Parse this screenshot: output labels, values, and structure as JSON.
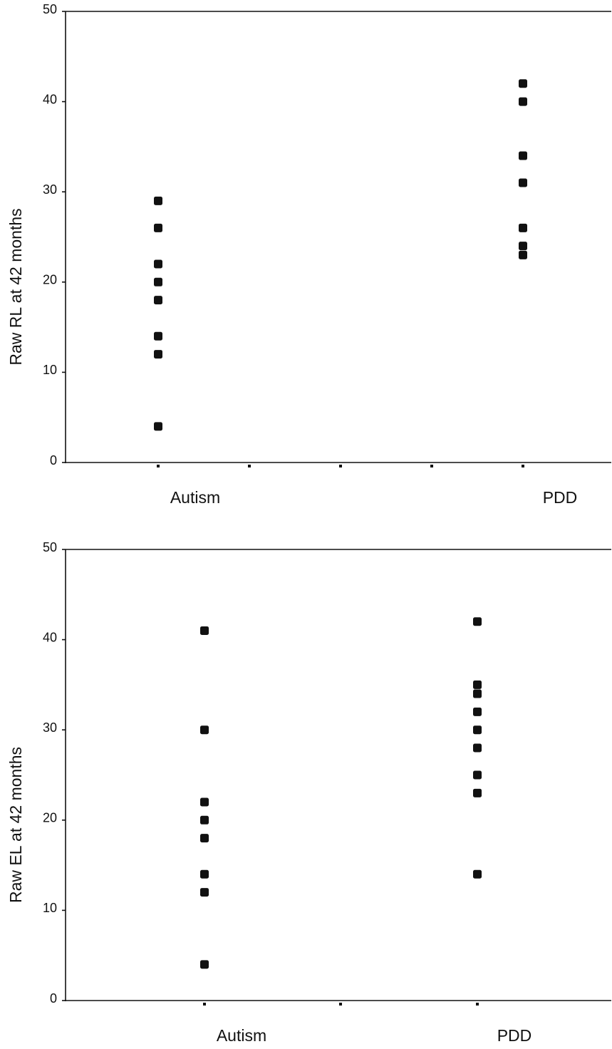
{
  "chart_data": [
    {
      "type": "scatter",
      "title": "",
      "xlabel": "",
      "ylabel": "Raw RL at 42 months",
      "ylim": [
        0,
        50
      ],
      "yticks": [
        "0",
        "10",
        "20",
        "30",
        "40",
        "50"
      ],
      "x_slots": 5,
      "categories": [
        {
          "label": "Autism",
          "slot": 1
        },
        {
          "label": "PDD",
          "slot": 5
        }
      ],
      "series": [
        {
          "category": "Autism",
          "values": [
            29,
            26,
            22,
            20,
            18,
            14,
            12,
            4
          ]
        },
        {
          "category": "PDD",
          "values": [
            42,
            40,
            34,
            31,
            26,
            24,
            23
          ]
        }
      ],
      "grid": false,
      "legend": "none",
      "marker_color": "#111111"
    },
    {
      "type": "scatter",
      "title": "",
      "xlabel": "",
      "ylabel": "Raw EL at 42 months",
      "ylim": [
        0,
        50
      ],
      "yticks": [
        "0",
        "10",
        "20",
        "30",
        "40",
        "50"
      ],
      "x_slots": 3,
      "categories": [
        {
          "label": "Autism",
          "slot": 1
        },
        {
          "label": "PDD",
          "slot": 3
        }
      ],
      "series": [
        {
          "category": "Autism",
          "values": [
            41,
            30,
            22,
            20,
            18,
            14,
            12,
            4
          ]
        },
        {
          "category": "PDD",
          "values": [
            42,
            35,
            34,
            32,
            30,
            28,
            25,
            23,
            14
          ]
        }
      ],
      "grid": false,
      "legend": "none",
      "marker_color": "#111111"
    }
  ]
}
